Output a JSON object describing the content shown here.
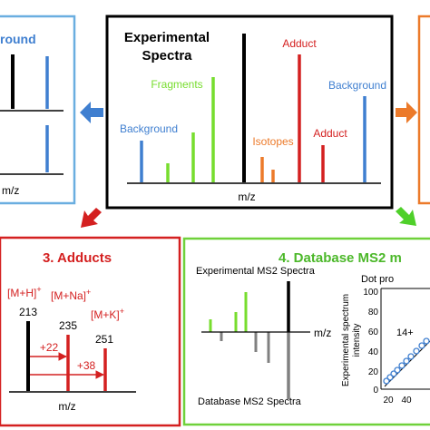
{
  "center_panel": {
    "title_line1": "Experimental",
    "title_line2": "Spectra",
    "label_fragments": "Fragments",
    "label_background_left": "Background",
    "label_isotopes": "Isotopes",
    "label_adduct_top": "Adduct",
    "label_adduct_mid": "Adduct",
    "label_background_right": "Background",
    "axis_label": "m/z"
  },
  "left_panel": {
    "title_partial": "round",
    "axis_label": "m/z"
  },
  "adducts_panel": {
    "title": "3. Adducts",
    "label_mh": "[M+H]",
    "label_mh_sup": "+",
    "label_mna": "[M+Na]",
    "label_mna_sup": "+",
    "label_mk": "[M+K]",
    "label_mk_sup": "+",
    "val_213": "213",
    "val_235": "235",
    "val_251": "251",
    "diff_22": "+22",
    "diff_38": "+38",
    "axis_label": "m/z"
  },
  "database_panel": {
    "title": "4. Database MS2 m",
    "exp_label": "Experimental MS2 Spectra",
    "db_label": "Database MS2 Spectra",
    "axis_label": "m/z",
    "dot_label": "Dot pro",
    "yaxis_line1": "Experimental spectrum",
    "yaxis_line2": "intensity",
    "annot": "14+",
    "tick_100": "100",
    "tick_80": "80",
    "tick_60": "60",
    "tick_40": "40",
    "tick_20": "20",
    "tick_0": "0",
    "xtick_20": "20",
    "xtick_40": "40"
  },
  "colors": {
    "blue": "#3f7fd0",
    "green": "#77dd2e",
    "orange": "#ec7a2a",
    "red": "#d42020",
    "black": "#000000",
    "gray": "#808080",
    "left_border": "#6aaee0",
    "right_border": "#ec7a2a",
    "adducts_border": "#d42020",
    "database_border": "#6fd13a"
  }
}
